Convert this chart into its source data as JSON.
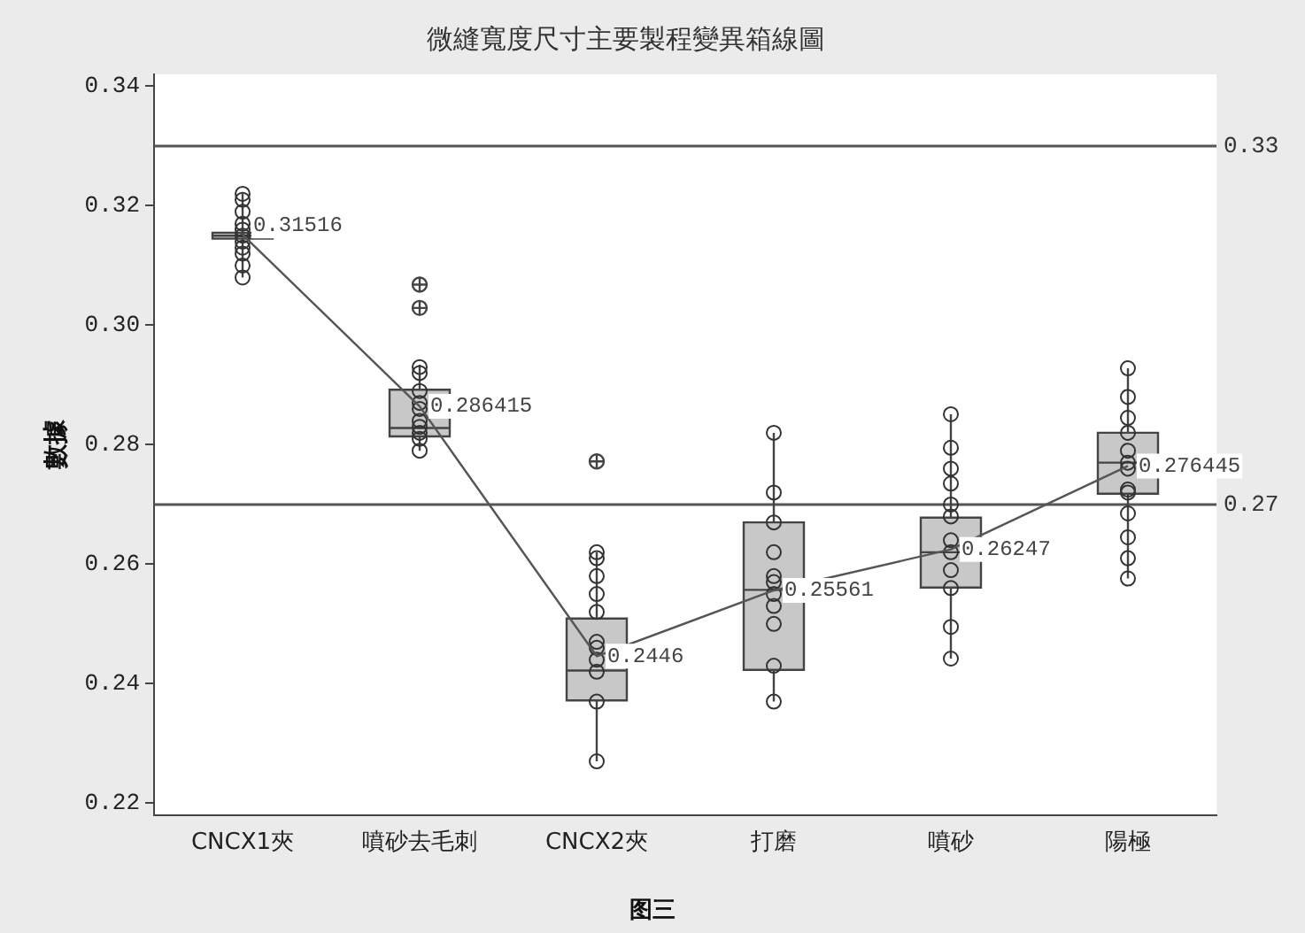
{
  "chart_data": {
    "type": "box",
    "title": "微縫寬度尺寸主要製程變異箱線圖",
    "ylabel": "數據",
    "annotations": [
      "图三"
    ],
    "categories": [
      "CNCX1夾",
      "噴砂去毛刺",
      "CNCX2夾",
      "打磨",
      "噴砂",
      "陽極"
    ],
    "ylim": [
      0.218,
      0.342
    ],
    "yticks": [
      0.22,
      0.24,
      0.26,
      0.28,
      {
        "value": 0.3,
        "label": "0.30"
      },
      0.32,
      0.34
    ],
    "grid": false,
    "legend": false,
    "marker": "circle",
    "ref_lines": [
      {
        "axis": "y",
        "value": 0.33,
        "label": "0.33"
      },
      {
        "axis": "y",
        "value": 0.27,
        "label": "0.27"
      }
    ],
    "series": [
      {
        "color": "#c8c8c8",
        "boxes": [
          {
            "low": 0.308,
            "q1": 0.3145,
            "median": 0.315,
            "q3": 0.3155,
            "high": 0.322
          },
          {
            "low": 0.279,
            "q1": 0.2814,
            "median": 0.2828,
            "q3": 0.2892,
            "high": 0.2934,
            "outliers": [
              0.3068,
              0.3029
            ]
          },
          {
            "low": 0.227,
            "q1": 0.2372,
            "median": 0.2422,
            "q3": 0.2509,
            "high": 0.262,
            "outliers": [
              0.2772
            ]
          },
          {
            "low": 0.237,
            "q1": 0.2423,
            "median": 0.2557,
            "q3": 0.267,
            "high": 0.282
          },
          {
            "low": 0.2442,
            "q1": 0.2561,
            "median": 0.262,
            "q3": 0.2678,
            "high": 0.2851
          },
          {
            "low": 0.2576,
            "q1": 0.2718,
            "median": 0.277,
            "q3": 0.282,
            "high": 0.2928
          }
        ]
      },
      {
        "type": "scatter",
        "color": "#333333",
        "x": [
          "CNCX1夾",
          "CNCX1夾",
          "CNCX1夾",
          "CNCX1夾",
          "CNCX1夾",
          "CNCX1夾",
          "CNCX1夾",
          "CNCX1夾",
          "CNCX1夾",
          "CNCX1夾",
          "CNCX1夾",
          "噴砂去毛刺",
          "噴砂去毛刺",
          "噴砂去毛刺",
          "噴砂去毛刺",
          "噴砂去毛刺",
          "噴砂去毛刺",
          "噴砂去毛刺",
          "噴砂去毛刺",
          "噴砂去毛刺",
          "噴砂去毛刺",
          "CNCX2夾",
          "CNCX2夾",
          "CNCX2夾",
          "CNCX2夾",
          "CNCX2夾",
          "CNCX2夾",
          "CNCX2夾",
          "CNCX2夾",
          "CNCX2夾",
          "CNCX2夾",
          "CNCX2夾",
          "打磨",
          "打磨",
          "打磨",
          "打磨",
          "打磨",
          "打磨",
          "打磨",
          "打磨",
          "打磨",
          "打磨",
          "打磨",
          "噴砂",
          "噴砂",
          "噴砂",
          "噴砂",
          "噴砂",
          "噴砂",
          "噴砂",
          "噴砂",
          "噴砂",
          "噴砂",
          "噴砂",
          "噴砂",
          "陽極",
          "陽極",
          "陽極",
          "陽極",
          "陽極",
          "陽極",
          "陽極",
          "陽極",
          "陽極",
          "陽極",
          "陽極",
          "陽極",
          "陽極"
        ],
        "values": [
          0.322,
          0.321,
          0.319,
          0.317,
          0.316,
          0.315,
          0.314,
          0.313,
          0.312,
          0.31,
          0.308,
          0.293,
          0.292,
          0.289,
          0.287,
          0.286,
          0.284,
          0.283,
          0.282,
          0.281,
          0.279,
          0.262,
          0.261,
          0.258,
          0.255,
          0.252,
          0.247,
          0.246,
          0.244,
          0.242,
          0.237,
          0.227,
          0.282,
          0.272,
          0.267,
          0.262,
          0.258,
          0.257,
          0.255,
          0.253,
          0.25,
          0.243,
          0.237,
          0.2851,
          0.2795,
          0.276,
          0.2735,
          0.27,
          0.268,
          0.264,
          0.262,
          0.259,
          0.256,
          0.2495,
          0.2442,
          0.2928,
          0.288,
          0.2845,
          0.282,
          0.279,
          0.277,
          0.276,
          0.2725,
          0.272,
          0.2685,
          0.2645,
          0.261,
          0.2576
        ]
      },
      {
        "type": "line",
        "color": "#555555",
        "marker": "none",
        "values": [
          0.31516,
          0.286415,
          0.2446,
          0.25561,
          0.26247,
          0.276445
        ],
        "value_labels": [
          "0.31516",
          "0.286415",
          "0.2446",
          "0.25561",
          "0.26247",
          "0.276445"
        ]
      }
    ]
  }
}
